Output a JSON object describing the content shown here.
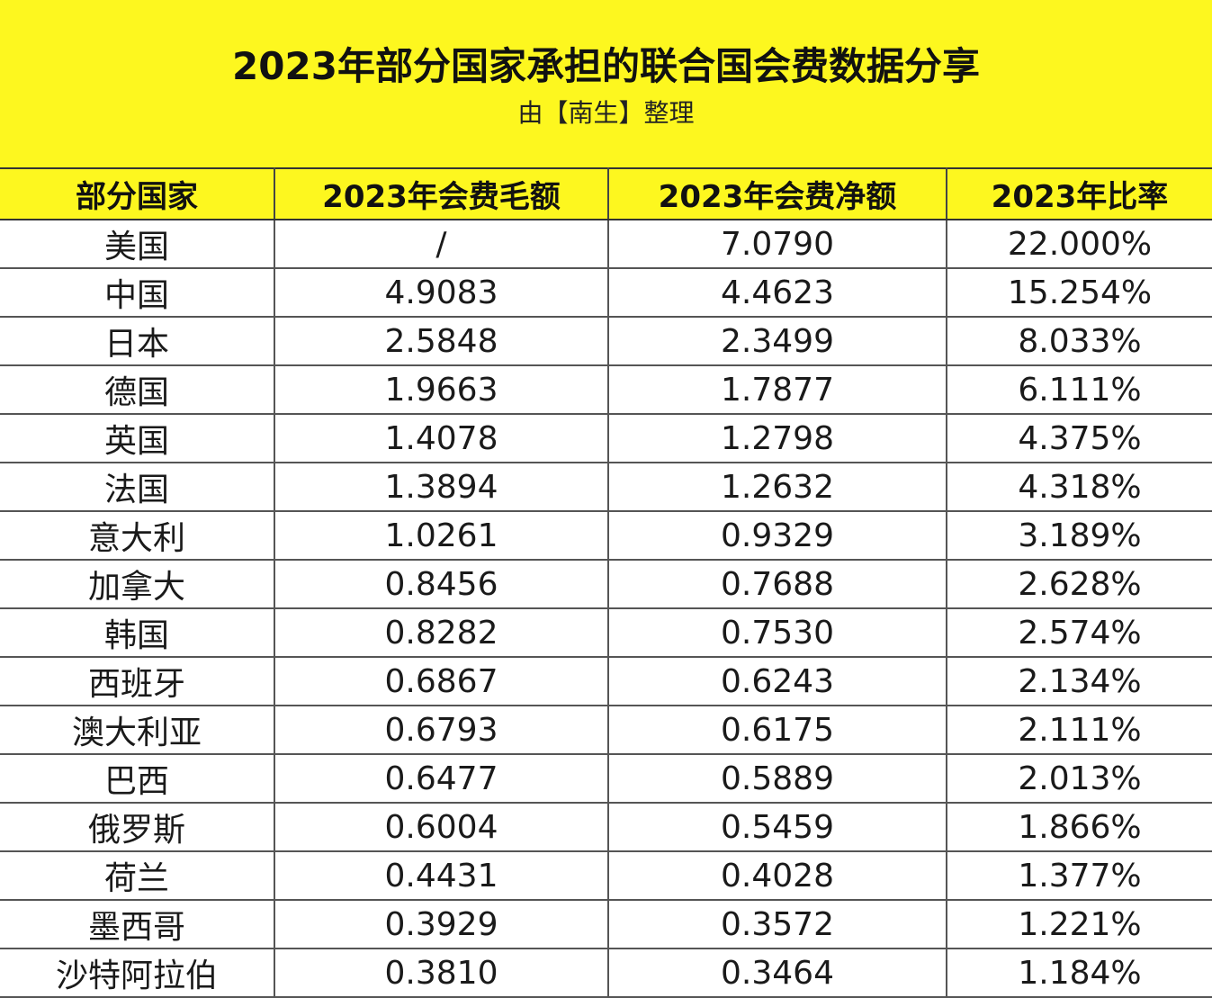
{
  "header": {
    "title": "2023年部分国家承担的联合国会费数据分享",
    "subtitle": "由【南生】整理",
    "background_color": "#fdf71f"
  },
  "table": {
    "columns": [
      "部分国家",
      "2023年会费毛额",
      "2023年会费净额",
      "2023年比率"
    ],
    "rows": [
      [
        "美国",
        "/",
        "7.0790",
        "22.000%"
      ],
      [
        "中国",
        "4.9083",
        "4.4623",
        "15.254%"
      ],
      [
        "日本",
        "2.5848",
        "2.3499",
        "8.033%"
      ],
      [
        "德国",
        "1.9663",
        "1.7877",
        "6.111%"
      ],
      [
        "英国",
        "1.4078",
        "1.2798",
        "4.375%"
      ],
      [
        "法国",
        "1.3894",
        "1.2632",
        "4.318%"
      ],
      [
        "意大利",
        "1.0261",
        "0.9329",
        "3.189%"
      ],
      [
        "加拿大",
        "0.8456",
        "0.7688",
        "2.628%"
      ],
      [
        "韩国",
        "0.8282",
        "0.7530",
        "2.574%"
      ],
      [
        "西班牙",
        "0.6867",
        "0.6243",
        "2.134%"
      ],
      [
        "澳大利亚",
        "0.6793",
        "0.6175",
        "2.111%"
      ],
      [
        "巴西",
        "0.6477",
        "0.5889",
        "2.013%"
      ],
      [
        "俄罗斯",
        "0.6004",
        "0.5459",
        "1.866%"
      ],
      [
        "荷兰",
        "0.4431",
        "0.4028",
        "1.377%"
      ],
      [
        "墨西哥",
        "0.3929",
        "0.3572",
        "1.221%"
      ],
      [
        "沙特阿拉伯",
        "0.3810",
        "0.3464",
        "1.184%"
      ]
    ]
  }
}
